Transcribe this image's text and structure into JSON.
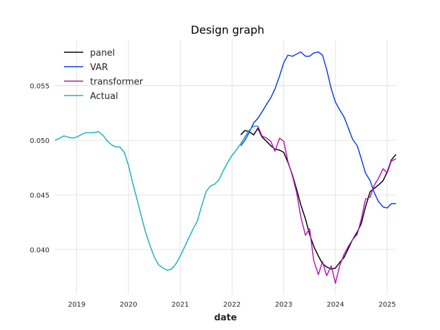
{
  "chart_data": {
    "type": "line",
    "title": "Design graph",
    "xlabel": "date",
    "ylabel": "",
    "xlim": [
      2018.58,
      2025.17
    ],
    "ylim": [
      0.0359,
      0.0592
    ],
    "x_ticks": [
      {
        "value": 2019,
        "label": "2019"
      },
      {
        "value": 2020,
        "label": "2020"
      },
      {
        "value": 2021,
        "label": "2021"
      },
      {
        "value": 2022,
        "label": "2022"
      },
      {
        "value": 2023,
        "label": "2023"
      },
      {
        "value": 2024,
        "label": "2024"
      },
      {
        "value": 2025,
        "label": "2025"
      }
    ],
    "y_ticks": [
      {
        "value": 0.04,
        "label": "0.040"
      },
      {
        "value": 0.045,
        "label": "0.045"
      },
      {
        "value": 0.05,
        "label": "0.050"
      },
      {
        "value": 0.055,
        "label": "0.055"
      }
    ],
    "grid": true,
    "legend_position": "top-left",
    "series": [
      {
        "name": "panel",
        "color": "#000000",
        "points": [
          [
            2022.17,
            0.0505
          ],
          [
            2022.25,
            0.0509
          ],
          [
            2022.33,
            0.0508
          ],
          [
            2022.42,
            0.0505
          ],
          [
            2022.5,
            0.0511
          ],
          [
            2022.58,
            0.0503
          ],
          [
            2022.67,
            0.0499
          ],
          [
            2022.75,
            0.0495
          ],
          [
            2022.83,
            0.0492
          ],
          [
            2022.92,
            0.0491
          ],
          [
            2023.0,
            0.0489
          ],
          [
            2023.08,
            0.048
          ],
          [
            2023.17,
            0.0468
          ],
          [
            2023.25,
            0.0455
          ],
          [
            2023.33,
            0.0441
          ],
          [
            2023.42,
            0.0428
          ],
          [
            2023.5,
            0.0414
          ],
          [
            2023.58,
            0.0403
          ],
          [
            2023.67,
            0.0394
          ],
          [
            2023.75,
            0.0387
          ],
          [
            2023.83,
            0.0384
          ],
          [
            2023.92,
            0.0382
          ],
          [
            2024.0,
            0.0383
          ],
          [
            2024.08,
            0.0388
          ],
          [
            2024.17,
            0.0393
          ],
          [
            2024.25,
            0.0401
          ],
          [
            2024.33,
            0.0409
          ],
          [
            2024.42,
            0.0416
          ],
          [
            2024.5,
            0.0424
          ],
          [
            2024.58,
            0.0439
          ],
          [
            2024.67,
            0.0453
          ],
          [
            2024.75,
            0.0456
          ],
          [
            2024.83,
            0.0459
          ],
          [
            2024.92,
            0.0463
          ],
          [
            2025.0,
            0.0471
          ],
          [
            2025.08,
            0.0482
          ],
          [
            2025.17,
            0.0487
          ]
        ]
      },
      {
        "name": "VAR",
        "color": "#0b3fe6",
        "points": [
          [
            2022.17,
            0.0495
          ],
          [
            2022.25,
            0.05
          ],
          [
            2022.33,
            0.0507
          ],
          [
            2022.42,
            0.0516
          ],
          [
            2022.5,
            0.052
          ],
          [
            2022.58,
            0.0526
          ],
          [
            2022.67,
            0.0533
          ],
          [
            2022.75,
            0.0539
          ],
          [
            2022.83,
            0.0547
          ],
          [
            2022.92,
            0.0559
          ],
          [
            2023.0,
            0.0571
          ],
          [
            2023.08,
            0.0578
          ],
          [
            2023.17,
            0.0577
          ],
          [
            2023.25,
            0.0579
          ],
          [
            2023.33,
            0.0581
          ],
          [
            2023.42,
            0.0577
          ],
          [
            2023.5,
            0.0577
          ],
          [
            2023.58,
            0.058
          ],
          [
            2023.67,
            0.0581
          ],
          [
            2023.75,
            0.0578
          ],
          [
            2023.83,
            0.0565
          ],
          [
            2023.92,
            0.0547
          ],
          [
            2024.0,
            0.0535
          ],
          [
            2024.08,
            0.0528
          ],
          [
            2024.17,
            0.0521
          ],
          [
            2024.25,
            0.0511
          ],
          [
            2024.33,
            0.0501
          ],
          [
            2024.42,
            0.0495
          ],
          [
            2024.5,
            0.0483
          ],
          [
            2024.58,
            0.047
          ],
          [
            2024.67,
            0.0463
          ],
          [
            2024.75,
            0.0452
          ],
          [
            2024.83,
            0.0444
          ],
          [
            2024.92,
            0.0439
          ],
          [
            2025.0,
            0.0438
          ],
          [
            2025.08,
            0.0442
          ],
          [
            2025.17,
            0.0442
          ]
        ]
      },
      {
        "name": "transformer",
        "color": "#b31ab3",
        "points": [
          [
            2022.17,
            0.0497
          ],
          [
            2022.25,
            0.0503
          ],
          [
            2022.33,
            0.0509
          ],
          [
            2022.42,
            0.0513
          ],
          [
            2022.5,
            0.0513
          ],
          [
            2022.58,
            0.0504
          ],
          [
            2022.67,
            0.0502
          ],
          [
            2022.75,
            0.0499
          ],
          [
            2022.83,
            0.049
          ],
          [
            2022.92,
            0.0502
          ],
          [
            2023.0,
            0.0499
          ],
          [
            2023.08,
            0.0481
          ],
          [
            2023.17,
            0.0467
          ],
          [
            2023.25,
            0.0452
          ],
          [
            2023.33,
            0.043
          ],
          [
            2023.42,
            0.0413
          ],
          [
            2023.5,
            0.0419
          ],
          [
            2023.58,
            0.039
          ],
          [
            2023.67,
            0.0377
          ],
          [
            2023.75,
            0.0389
          ],
          [
            2023.83,
            0.0376
          ],
          [
            2023.92,
            0.0385
          ],
          [
            2024.0,
            0.0369
          ],
          [
            2024.08,
            0.0385
          ],
          [
            2024.17,
            0.0396
          ],
          [
            2024.25,
            0.0403
          ],
          [
            2024.33,
            0.0409
          ],
          [
            2024.42,
            0.0414
          ],
          [
            2024.5,
            0.0428
          ],
          [
            2024.58,
            0.0446
          ],
          [
            2024.67,
            0.0448
          ],
          [
            2024.75,
            0.0459
          ],
          [
            2024.83,
            0.0465
          ],
          [
            2024.92,
            0.0474
          ],
          [
            2025.0,
            0.047
          ],
          [
            2025.08,
            0.0481
          ],
          [
            2025.17,
            0.0483
          ]
        ]
      },
      {
        "name": "Actual",
        "color": "#17b3c0",
        "points": [
          [
            2018.58,
            0.05
          ],
          [
            2018.67,
            0.0502
          ],
          [
            2018.75,
            0.0504
          ],
          [
            2018.83,
            0.0503
          ],
          [
            2018.92,
            0.0502
          ],
          [
            2019.0,
            0.0503
          ],
          [
            2019.08,
            0.0505
          ],
          [
            2019.17,
            0.0507
          ],
          [
            2019.25,
            0.0507
          ],
          [
            2019.33,
            0.0507
          ],
          [
            2019.42,
            0.0508
          ],
          [
            2019.5,
            0.0505
          ],
          [
            2019.58,
            0.05
          ],
          [
            2019.67,
            0.0496
          ],
          [
            2019.75,
            0.0494
          ],
          [
            2019.83,
            0.0494
          ],
          [
            2019.92,
            0.0489
          ],
          [
            2020.0,
            0.0477
          ],
          [
            2020.08,
            0.0461
          ],
          [
            2020.17,
            0.0445
          ],
          [
            2020.25,
            0.043
          ],
          [
            2020.33,
            0.0416
          ],
          [
            2020.42,
            0.0403
          ],
          [
            2020.5,
            0.0393
          ],
          [
            2020.58,
            0.0386
          ],
          [
            2020.67,
            0.0383
          ],
          [
            2020.75,
            0.0381
          ],
          [
            2020.83,
            0.0382
          ],
          [
            2020.92,
            0.0387
          ],
          [
            2021.0,
            0.0394
          ],
          [
            2021.08,
            0.0402
          ],
          [
            2021.17,
            0.0411
          ],
          [
            2021.25,
            0.0419
          ],
          [
            2021.33,
            0.0426
          ],
          [
            2021.42,
            0.0441
          ],
          [
            2021.5,
            0.0453
          ],
          [
            2021.58,
            0.0458
          ],
          [
            2021.67,
            0.046
          ],
          [
            2021.75,
            0.0464
          ],
          [
            2021.83,
            0.0472
          ],
          [
            2021.92,
            0.048
          ],
          [
            2022.0,
            0.0486
          ],
          [
            2022.08,
            0.0491
          ],
          [
            2022.17,
            0.0497
          ],
          [
            2022.25,
            0.0503
          ],
          [
            2022.33,
            0.0509
          ],
          [
            2022.42,
            0.0513
          ],
          [
            2022.5,
            0.0513
          ]
        ]
      }
    ]
  }
}
